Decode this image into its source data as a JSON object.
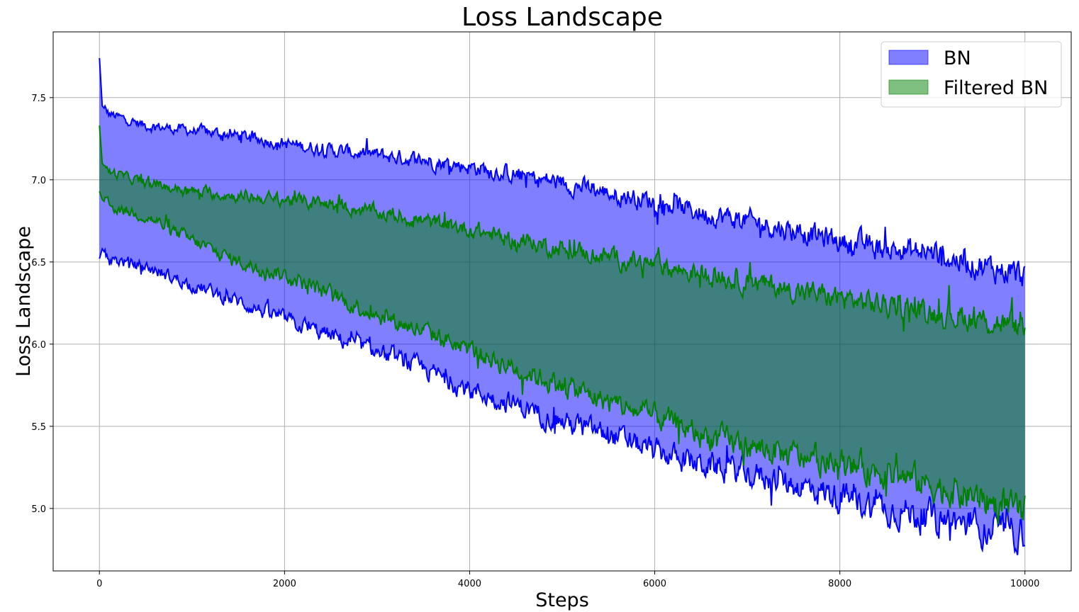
{
  "chart_data": {
    "type": "area",
    "title": "Loss Landscape",
    "xlabel": "Steps",
    "ylabel": "Loss Landscape",
    "xlim": [
      -500,
      10500
    ],
    "ylim": [
      4.62,
      7.9
    ],
    "xticks": [
      0,
      2000,
      4000,
      6000,
      8000,
      10000
    ],
    "xtick_labels": [
      "0",
      "2000",
      "4000",
      "6000",
      "8000",
      "10000"
    ],
    "yticks": [
      5.0,
      5.5,
      6.0,
      6.5,
      7.0,
      7.5
    ],
    "ytick_labels": [
      "5.0",
      "5.5",
      "6.0",
      "6.5",
      "7.0",
      "7.5"
    ],
    "grid": true,
    "legend_position": "top-right",
    "series": [
      {
        "name": "BN",
        "fill_color": "#0000ff",
        "fill_alpha": 0.5,
        "line_color": "#0000ff",
        "x": [
          0,
          30,
          100,
          500,
          1000,
          1500,
          2000,
          2500,
          3000,
          3500,
          4000,
          4500,
          5000,
          5500,
          6000,
          6500,
          7000,
          7500,
          8000,
          8500,
          9000,
          9500,
          10000
        ],
        "upper": [
          7.74,
          7.45,
          7.4,
          7.33,
          7.3,
          7.27,
          7.22,
          7.18,
          7.15,
          7.12,
          7.08,
          7.03,
          6.98,
          6.92,
          6.87,
          6.8,
          6.75,
          6.69,
          6.63,
          6.58,
          6.55,
          6.48,
          6.42
        ],
        "lower": [
          6.52,
          6.58,
          6.52,
          6.47,
          6.36,
          6.26,
          6.15,
          6.05,
          5.95,
          5.85,
          5.72,
          5.63,
          5.53,
          5.45,
          5.35,
          5.27,
          5.22,
          5.15,
          5.07,
          5.0,
          4.95,
          4.88,
          4.85
        ]
      },
      {
        "name": "Filtered BN",
        "fill_color": "#008000",
        "fill_alpha": 0.5,
        "line_color": "#008000",
        "x": [
          0,
          30,
          100,
          500,
          1000,
          1500,
          2000,
          2500,
          3000,
          3500,
          4000,
          4500,
          5000,
          5500,
          6000,
          6500,
          7000,
          7500,
          8000,
          8500,
          9000,
          9500,
          10000
        ],
        "upper": [
          7.33,
          7.1,
          7.05,
          6.98,
          6.93,
          6.9,
          6.88,
          6.85,
          6.8,
          6.75,
          6.7,
          6.63,
          6.58,
          6.53,
          6.48,
          6.43,
          6.38,
          6.33,
          6.28,
          6.24,
          6.2,
          6.15,
          6.1
        ],
        "lower": [
          6.93,
          6.88,
          6.84,
          6.78,
          6.63,
          6.5,
          6.42,
          6.3,
          6.18,
          6.08,
          5.97,
          5.85,
          5.75,
          5.65,
          5.56,
          5.45,
          5.38,
          5.32,
          5.27,
          5.22,
          5.14,
          5.06,
          4.97
        ]
      }
    ]
  }
}
